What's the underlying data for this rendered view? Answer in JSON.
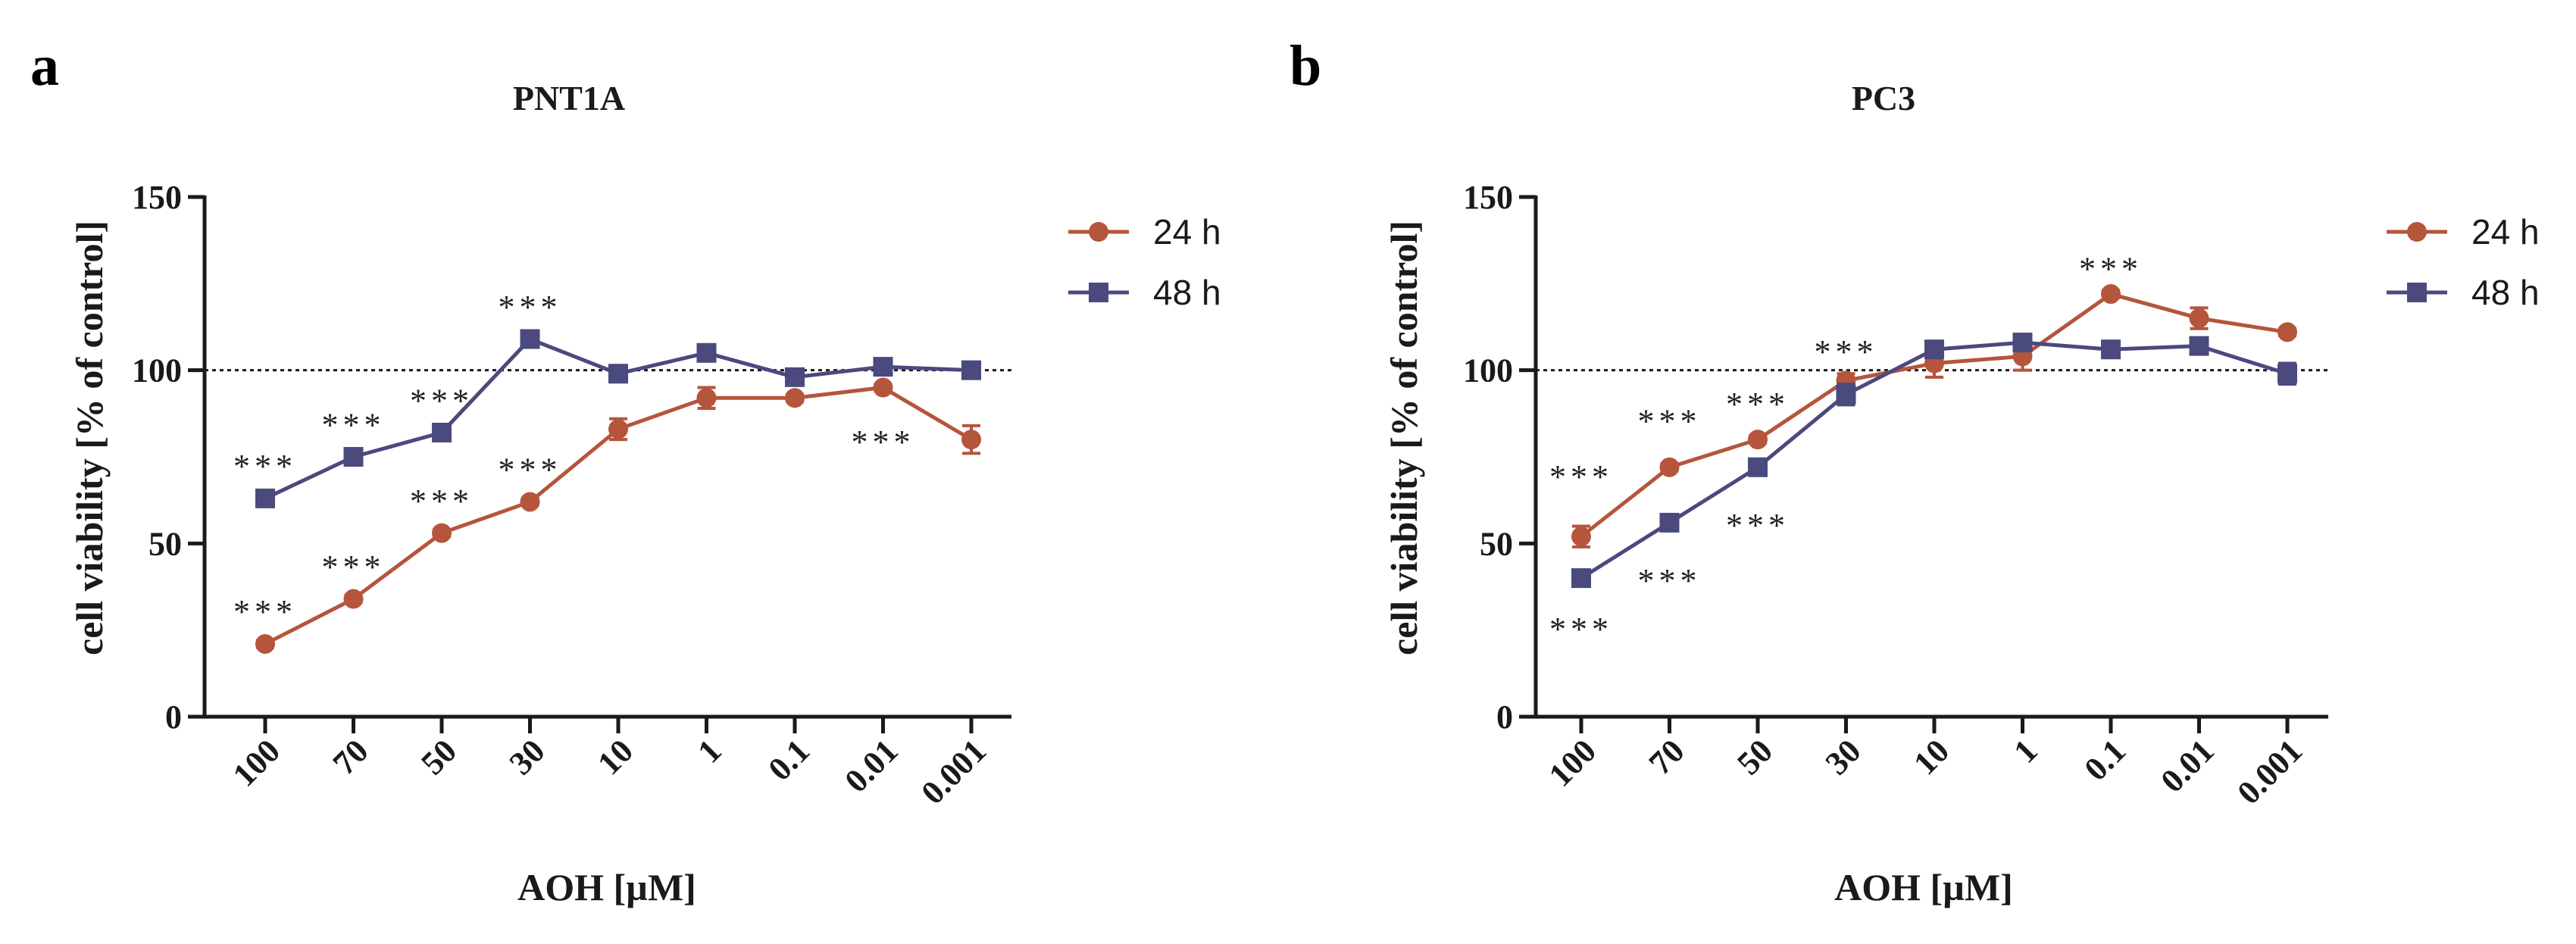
{
  "chart_data": [
    {
      "type": "line",
      "panel": "a",
      "title": "PNT1A",
      "xlabel": "AOH [µM]",
      "ylabel": "cell viability [% of control]",
      "categories": [
        "100",
        "70",
        "50",
        "30",
        "10",
        "1",
        "0.1",
        "0.01",
        "0.001"
      ],
      "ylim": [
        0,
        150
      ],
      "yticks": [
        "0",
        "50",
        "100",
        "150"
      ],
      "reference_line": 100,
      "legend_position": "top-right",
      "series": [
        {
          "name": "24 h",
          "color": "#b5553b",
          "marker": "circle",
          "values": [
            21,
            34,
            53,
            62,
            83,
            92,
            92,
            95,
            80
          ],
          "errors": [
            1,
            1,
            1,
            1,
            3,
            3,
            1,
            1,
            4
          ]
        },
        {
          "name": "48 h",
          "color": "#4a4a7e",
          "marker": "square",
          "values": [
            63,
            75,
            82,
            109,
            99,
            105,
            98,
            101,
            100
          ],
          "errors": [
            1,
            1,
            1,
            1,
            1,
            1,
            1,
            1,
            1
          ]
        }
      ],
      "annotations": [
        {
          "text": "***",
          "category": "100",
          "y": 31
        },
        {
          "text": "***",
          "category": "100",
          "y": 73
        },
        {
          "text": "***",
          "category": "70",
          "y": 44
        },
        {
          "text": "***",
          "category": "70",
          "y": 85
        },
        {
          "text": "***",
          "category": "50",
          "y": 63
        },
        {
          "text": "***",
          "category": "50",
          "y": 92
        },
        {
          "text": "***",
          "category": "30",
          "y": 72
        },
        {
          "text": "***",
          "category": "30",
          "y": 119
        },
        {
          "text": "***",
          "category": "0.01",
          "y": 80
        }
      ]
    },
    {
      "type": "line",
      "panel": "b",
      "title": "PC3",
      "xlabel": "AOH [µM]",
      "ylabel": "cell viability [% of control]",
      "categories": [
        "100",
        "70",
        "50",
        "30",
        "10",
        "1",
        "0.1",
        "0.01",
        "0.001"
      ],
      "ylim": [
        0,
        150
      ],
      "yticks": [
        "0",
        "50",
        "100",
        "150"
      ],
      "reference_line": 100,
      "legend_position": "top-right",
      "series": [
        {
          "name": "24 h",
          "color": "#b5553b",
          "marker": "circle",
          "values": [
            52,
            72,
            80,
            97,
            102,
            104,
            122,
            115,
            111
          ],
          "errors": [
            3,
            1,
            1,
            2,
            4,
            4,
            1,
            3,
            1
          ]
        },
        {
          "name": "48 h",
          "color": "#4a4a7e",
          "marker": "square",
          "values": [
            40,
            56,
            72,
            93,
            106,
            108,
            106,
            107,
            99
          ],
          "errors": [
            1,
            1,
            1,
            3,
            1,
            1,
            1,
            1,
            3
          ]
        }
      ],
      "annotations": [
        {
          "text": "***",
          "category": "100",
          "y": 70
        },
        {
          "text": "***",
          "category": "100",
          "y": 26
        },
        {
          "text": "***",
          "category": "70",
          "y": 86
        },
        {
          "text": "***",
          "category": "70",
          "y": 40
        },
        {
          "text": "***",
          "category": "50",
          "y": 91
        },
        {
          "text": "***",
          "category": "50",
          "y": 56
        },
        {
          "text": "***",
          "category": "30",
          "y": 106
        },
        {
          "text": "***",
          "category": "0.1",
          "y": 130
        }
      ]
    }
  ]
}
